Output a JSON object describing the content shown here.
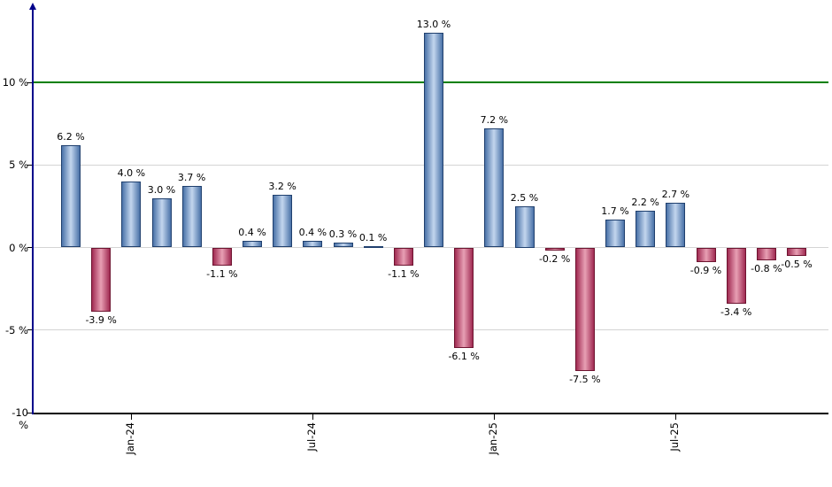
{
  "chart_data": {
    "type": "bar",
    "title": "",
    "unit": "%",
    "values": [
      6.2,
      -3.9,
      4.0,
      3.0,
      3.7,
      -1.1,
      0.4,
      3.2,
      0.4,
      0.3,
      0.1,
      -1.1,
      13.0,
      -6.1,
      7.2,
      2.5,
      -0.2,
      -7.5,
      1.7,
      2.2,
      2.7,
      -0.9,
      -3.4,
      -0.8,
      -0.5
    ],
    "bar_labels": [
      "6.2 %",
      "-3.9 %",
      "4.0 %",
      "3.0 %",
      "3.7 %",
      "-1.1 %",
      "0.4 %",
      "3.2 %",
      "0.4 %",
      "0.3 %",
      "0.1 %",
      "-1.1 %",
      "13.0 %",
      "-6.1 %",
      "7.2 %",
      "2.5 %",
      "-0.2 %",
      "-7.5 %",
      "1.7 %",
      "2.2 %",
      "2.7 %",
      "-0.9 %",
      "-3.4 %",
      "-0.8 %",
      "-0.5 %"
    ],
    "x_ticks": [
      {
        "label": "Jan-24",
        "bar_index": 2
      },
      {
        "label": "Jul-24",
        "bar_index": 8
      },
      {
        "label": "Jan-25",
        "bar_index": 14
      },
      {
        "label": "Jul-25",
        "bar_index": 20
      }
    ],
    "y_ticks": [
      {
        "label": "10 %",
        "value": 10
      },
      {
        "label": "5 %",
        "value": 5
      },
      {
        "label": "0 %",
        "value": 0
      },
      {
        "label": "-5 %",
        "value": -5
      },
      {
        "label": "-10 %",
        "value": -10
      }
    ],
    "ylim": [
      -10,
      14.8
    ],
    "grid_values": [
      5,
      0,
      -5
    ],
    "reference_line": {
      "value": 10,
      "color": "#008000"
    },
    "legend": "none",
    "colors": {
      "positive_edge": "#4a72a8",
      "positive_fill": "#c3d6ee",
      "positive_border": "#20406e",
      "negative_edge": "#a02a52",
      "negative_fill": "#e8a0b4",
      "negative_border": "#6e1430",
      "axis_spine": "#00008B",
      "axis_line": "#000000",
      "gridline": "#d4d4d4",
      "label_text": "#000000",
      "background": "#ffffff"
    }
  }
}
